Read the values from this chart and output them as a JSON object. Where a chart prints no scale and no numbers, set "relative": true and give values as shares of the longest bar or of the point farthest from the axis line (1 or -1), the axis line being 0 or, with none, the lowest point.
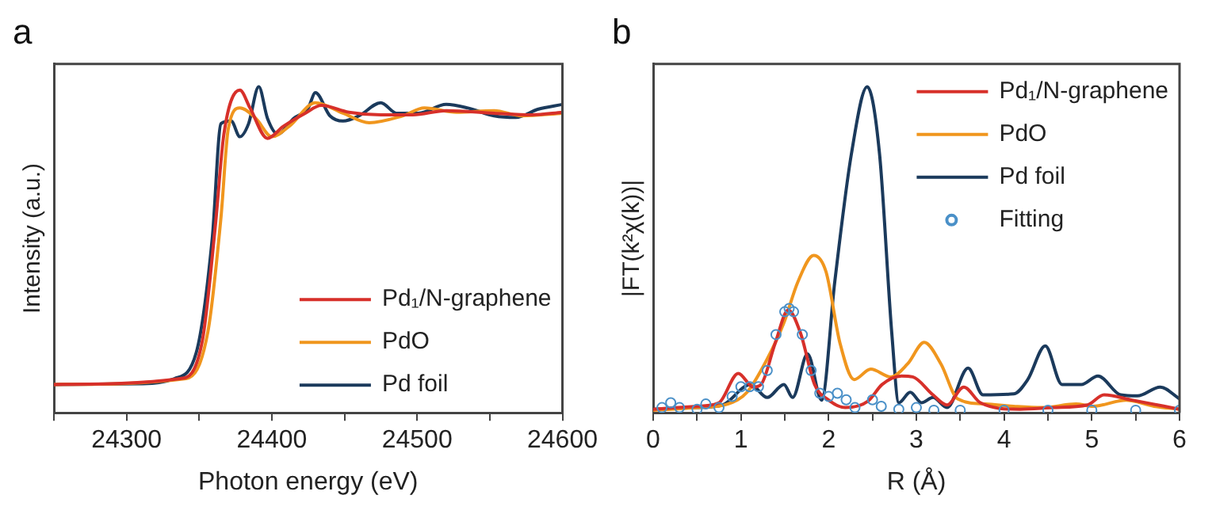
{
  "chart_data": [
    {
      "type": "line",
      "title": "a",
      "xlabel": "Photon energy (eV)",
      "ylabel": "Intensity (a.u.)",
      "relative": true,
      "xlim": [
        24250,
        24600
      ],
      "xticks": [
        {
          "value": 24250,
          "label": null
        },
        24300,
        {
          "value": 24350,
          "label": null
        },
        24400,
        {
          "value": 24450,
          "label": null
        },
        24500,
        {
          "value": 24550,
          "label": null
        },
        24600
      ],
      "grid": false,
      "legend": "bottom right",
      "marker": "none",
      "line_style": "solid",
      "series": [
        {
          "name": "Pd₁/N-graphene",
          "color": "#d7302a",
          "x": [
            24250,
            24337,
            24352,
            24361,
            24367,
            24378,
            24385,
            24397,
            24408,
            24423,
            24434,
            24453,
            24475,
            24497,
            24520,
            24553,
            24579,
            24600
          ],
          "values": [
            0.087,
            0.105,
            0.217,
            0.568,
            0.855,
            0.99,
            0.935,
            0.842,
            0.879,
            0.919,
            0.943,
            0.922,
            0.914,
            0.914,
            0.927,
            0.919,
            0.914,
            0.922
          ]
        },
        {
          "name": "PdO",
          "color": "#f0961e",
          "x": [
            24250,
            24341,
            24356,
            24365,
            24370,
            24378,
            24389,
            24400,
            24412,
            24430,
            24449,
            24467,
            24490,
            24505,
            24527,
            24553,
            24572,
            24600
          ],
          "values": [
            0.087,
            0.105,
            0.249,
            0.6,
            0.871,
            0.935,
            0.903,
            0.847,
            0.879,
            0.951,
            0.919,
            0.89,
            0.911,
            0.935,
            0.922,
            0.927,
            0.911,
            0.919
          ]
        },
        {
          "name": "Pd foil",
          "color": "#1b3a5c",
          "x": [
            24250,
            24311,
            24333,
            24348,
            24359,
            24365,
            24372,
            24378,
            24384,
            24391,
            24397,
            24404,
            24415,
            24425,
            24430,
            24440,
            24449,
            24460,
            24475,
            24486,
            24501,
            24520,
            24535,
            24553,
            24568,
            24583,
            24600
          ],
          "values": [
            0.087,
            0.089,
            0.105,
            0.185,
            0.536,
            0.887,
            0.895,
            0.847,
            0.887,
            1,
            0.903,
            0.855,
            0.903,
            0.935,
            0.982,
            0.911,
            0.895,
            0.911,
            0.951,
            0.919,
            0.919,
            0.946,
            0.935,
            0.911,
            0.906,
            0.931,
            0.946
          ]
        }
      ]
    },
    {
      "type": "line",
      "title": "b",
      "xlabel": "R (Å)",
      "ylabel": "|FT(k²χ(k))|",
      "relative": true,
      "xlim": [
        0,
        6
      ],
      "xticks": [
        0,
        {
          "value": 0.5,
          "label": null
        },
        1,
        {
          "value": 1.5,
          "label": null
        },
        2,
        {
          "value": 2.5,
          "label": null
        },
        3,
        {
          "value": 3.5,
          "label": null
        },
        4,
        {
          "value": 4.5,
          "label": null
        },
        5,
        {
          "value": 5.5,
          "label": null
        },
        6
      ],
      "grid": false,
      "legend": "top right",
      "line_style": "solid",
      "series": [
        {
          "name": "Pd₁/N-graphene",
          "color": "#d7302a",
          "marker": "none",
          "x": [
            0,
            0.5,
            0.75,
            0.97,
            1.14,
            1.23,
            1.39,
            1.54,
            1.68,
            1.84,
            2.0,
            2.19,
            2.45,
            2.61,
            2.83,
            2.96,
            3.19,
            3.35,
            3.54,
            3.73,
            4.18,
            4.56,
            4.95,
            5.14,
            5.46,
            6
          ],
          "values": [
            0.011,
            0.02,
            0.031,
            0.121,
            0.079,
            0.087,
            0.213,
            0.315,
            0.244,
            0.087,
            0.039,
            0.016,
            0.036,
            0.087,
            0.113,
            0.11,
            0.055,
            0.024,
            0.079,
            0.031,
            0.011,
            0.016,
            0.024,
            0.055,
            0.039,
            0.011
          ]
        },
        {
          "name": "PdO",
          "color": "#f0961e",
          "marker": "none",
          "x": [
            0,
            0.5,
            0.85,
            1.07,
            1.3,
            1.49,
            1.65,
            1.83,
            1.97,
            2.13,
            2.29,
            2.48,
            2.71,
            2.9,
            3.09,
            3.28,
            3.47,
            3.79,
            4.11,
            4.43,
            4.82,
            5.01,
            5.39,
            5.71,
            6
          ],
          "values": [
            0.008,
            0.016,
            0.027,
            0.063,
            0.165,
            0.276,
            0.402,
            0.483,
            0.433,
            0.213,
            0.102,
            0.134,
            0.11,
            0.15,
            0.216,
            0.15,
            0.043,
            0.027,
            0.02,
            0.016,
            0.027,
            0.02,
            0.039,
            0.02,
            0.011
          ]
        },
        {
          "name": "Pd foil",
          "color": "#1b3a5c",
          "marker": "none",
          "x": [
            0,
            0.5,
            0.79,
            1.11,
            1.3,
            1.49,
            1.59,
            1.76,
            1.92,
            2.07,
            2.26,
            2.44,
            2.58,
            2.72,
            2.8,
            2.93,
            3.06,
            3.19,
            3.35,
            3.59,
            3.76,
            4.11,
            4.27,
            4.47,
            4.66,
            4.88,
            5.07,
            5.33,
            5.52,
            5.78,
            6
          ],
          "values": [
            0.011,
            0.016,
            0.024,
            0.087,
            0.047,
            0.087,
            0.047,
            0.181,
            0.039,
            0.402,
            0.795,
            1,
            0.795,
            0.244,
            0.031,
            0.063,
            0.031,
            0.047,
            0.016,
            0.137,
            0.055,
            0.058,
            0.102,
            0.205,
            0.087,
            0.087,
            0.113,
            0.055,
            0.052,
            0.079,
            0.043
          ]
        },
        {
          "name": "Fitting",
          "type": "scatter",
          "color": "#4a90c8",
          "marker": "circle",
          "x": [
            0.1,
            0.2,
            0.3,
            0.5,
            0.6,
            0.75,
            0.9,
            1.0,
            1.1,
            1.2,
            1.3,
            1.4,
            1.5,
            1.55,
            1.6,
            1.7,
            1.8,
            1.9,
            2.0,
            2.1,
            2.2,
            2.3,
            2.5,
            2.6,
            2.8,
            3.0,
            3.2,
            3.5,
            4.0,
            4.5,
            5.0,
            5.5,
            6.0
          ],
          "values": [
            0.016,
            0.031,
            0.016,
            0.011,
            0.027,
            0.016,
            0.05,
            0.08,
            0.08,
            0.08,
            0.13,
            0.24,
            0.31,
            0.32,
            0.31,
            0.24,
            0.13,
            0.06,
            0.05,
            0.06,
            0.04,
            0.016,
            0.04,
            0.02,
            0.011,
            0.016,
            0.008,
            0.008,
            0.008,
            0.008,
            0.008,
            0.008,
            0.008
          ]
        }
      ]
    }
  ]
}
